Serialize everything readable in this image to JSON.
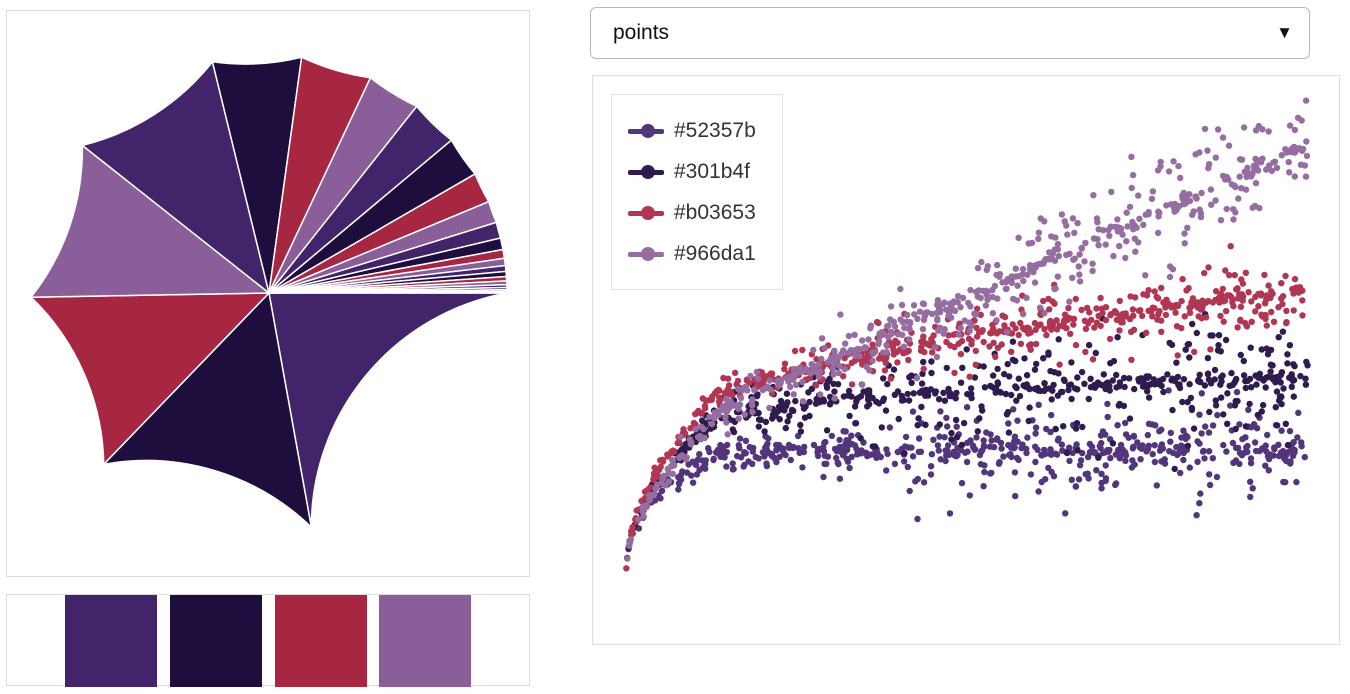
{
  "dropdown": {
    "selected": "points"
  },
  "palette": [
    "#52357b",
    "#301b4f",
    "#b03653",
    "#966da1"
  ],
  "chart_data": [
    {
      "type": "pie",
      "colors": [
        "#42246b",
        "#1e0e3d",
        "#a72743",
        "#8a5e98"
      ],
      "values": [
        22.5,
        15.3,
        12.7,
        11.1,
        10.7,
        6.1,
        4.9,
        3.7,
        3.3,
        2.8,
        2.1,
        1.5,
        1.1,
        0.8,
        0.6,
        0.5,
        0.4,
        0.35,
        0.3,
        0.25,
        0.2,
        0.15,
        0.12,
        0.1
      ]
    },
    {
      "type": "scatter",
      "legend_position": "top-left",
      "series": [
        {
          "name": "#52357b",
          "color": "#52357b",
          "trend": "flat",
          "level": 3.0,
          "spread": 1.6
        },
        {
          "name": "#301b4f",
          "color": "#301b4f",
          "trend": "log",
          "level": 5.2,
          "spread": 2.0
        },
        {
          "name": "#b03653",
          "color": "#b03653",
          "trend": "sqrt",
          "level": 7.8,
          "spread": 1.3
        },
        {
          "name": "#966da1",
          "color": "#966da1",
          "trend": "linear",
          "level": 12.1,
          "spread": 1.8
        }
      ],
      "x_range": [
        0,
        1
      ],
      "y_range": [
        -2,
        13.5
      ]
    }
  ]
}
